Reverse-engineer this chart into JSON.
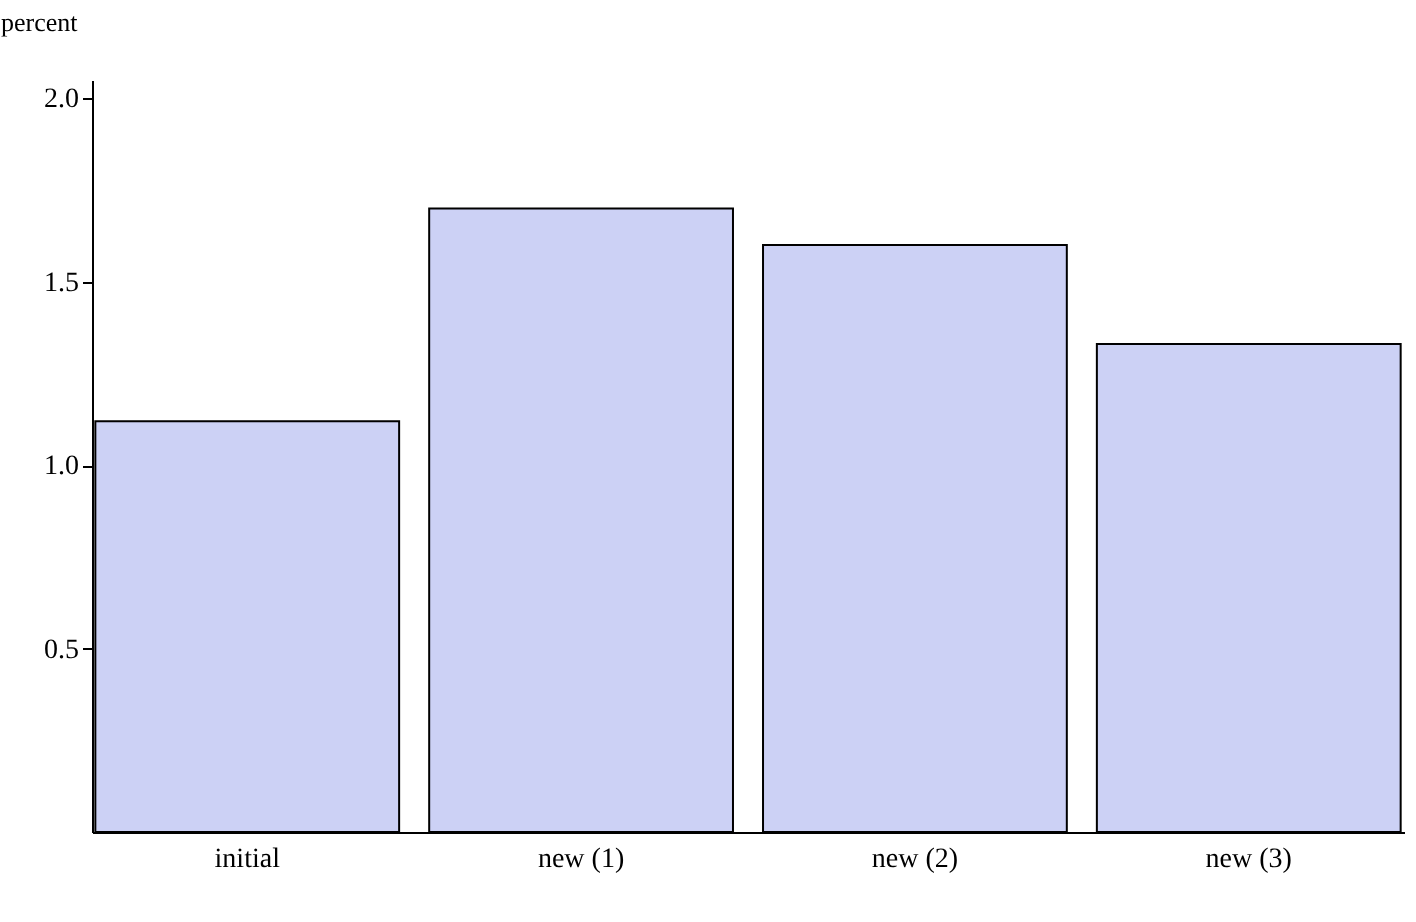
{
  "chart_data": {
    "type": "bar",
    "ylabel": "percent",
    "categories": [
      "initial",
      "new (1)",
      "new (2)",
      "new (3)"
    ],
    "values": [
      1.12,
      1.7,
      1.6,
      1.33
    ],
    "color": "#ccd1f5",
    "ylim": [
      0,
      2.05
    ],
    "yticks": [
      {
        "value": 0.5,
        "label": "0.5"
      },
      {
        "value": 1,
        "label": "1.0"
      },
      {
        "value": 1.5,
        "label": "1.5"
      },
      {
        "value": 2,
        "label": "2.0"
      }
    ],
    "grid": false
  }
}
